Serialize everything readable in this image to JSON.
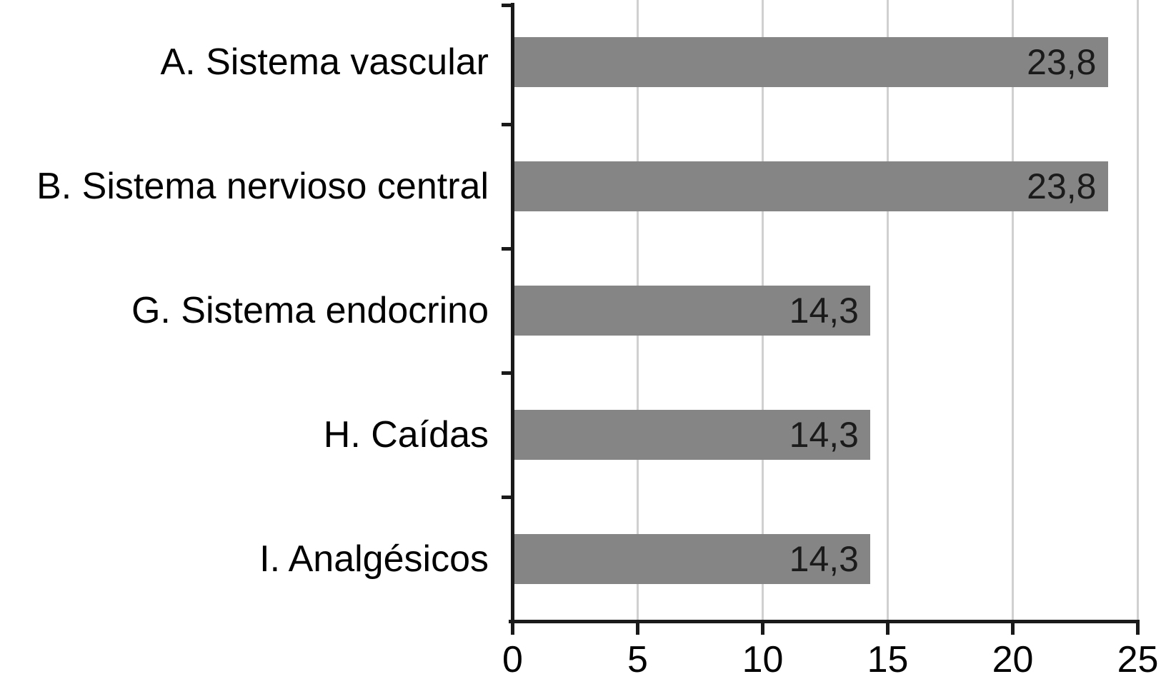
{
  "chart_data": {
    "type": "bar",
    "orientation": "horizontal",
    "title": "",
    "xlabel": "",
    "ylabel": "",
    "categories": [
      "A. Sistema vascular",
      "B. Sistema nervioso central",
      "G. Sistema endocrino",
      "H. Caídas",
      "I. Analgésicos"
    ],
    "values": [
      23.8,
      23.8,
      14.3,
      14.3,
      14.3
    ],
    "value_labels": [
      "23,8",
      "23,8",
      "14,3",
      "14,3",
      "14,3"
    ],
    "xlim": [
      0,
      25
    ],
    "x_ticks": [
      0,
      5,
      10,
      15,
      20,
      25
    ],
    "x_tick_labels": [
      "0",
      "5",
      "10",
      "15",
      "20",
      "25"
    ],
    "grid": true,
    "legend": false,
    "colors": {
      "bar": "#858585",
      "gridline": "#d0d0d0",
      "axis": "#1a1a1a",
      "category_label": "#000000",
      "value_label": "#1b1b1b",
      "tick_label": "#000000",
      "background": "#ffffff"
    }
  }
}
